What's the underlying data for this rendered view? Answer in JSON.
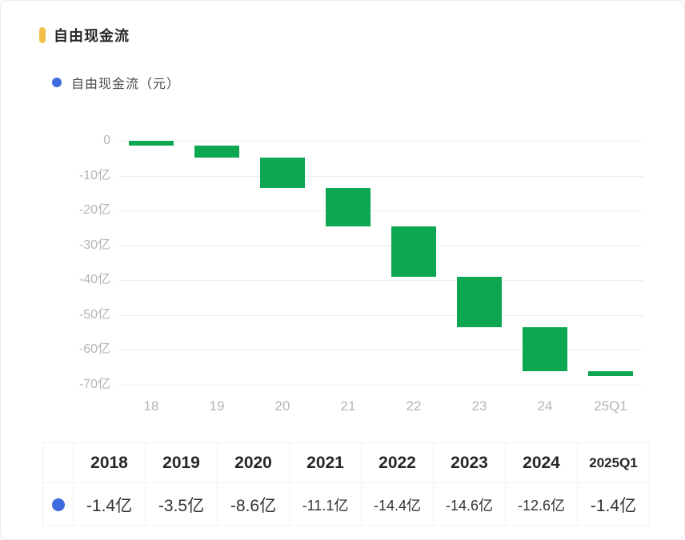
{
  "header": {
    "title": "自由现金流"
  },
  "legend": {
    "label": "自由现金流（元）"
  },
  "colors": {
    "bar_green": "#0CA750",
    "accent_gold": "#F0C04A",
    "series_blue": "#3E6BE0",
    "axis_label_gray": "#B5B5B5",
    "gridline_gray": "#EDEDED"
  },
  "chart_data": {
    "type": "bar",
    "subtype": "waterfall",
    "title": "自由现金流",
    "series_name": "自由现金流（元）",
    "categories": [
      "18",
      "19",
      "20",
      "21",
      "22",
      "23",
      "24",
      "25Q1"
    ],
    "values_yi": [
      -1.4,
      -3.5,
      -8.6,
      -11.1,
      -14.4,
      -14.6,
      -12.6,
      -1.4
    ],
    "cumulative_yi": [
      -1.4,
      -4.9,
      -13.5,
      -24.6,
      -39.0,
      -53.6,
      -66.2,
      -67.6
    ],
    "unit": "亿",
    "y_ticks": [
      {
        "label": "0",
        "value": 0
      },
      {
        "label": "-10亿",
        "value": -10
      },
      {
        "label": "-20亿",
        "value": -20
      },
      {
        "label": "-30亿",
        "value": -30
      },
      {
        "label": "-40亿",
        "value": -40
      },
      {
        "label": "-50亿",
        "value": -50
      },
      {
        "label": "-60亿",
        "value": -60
      },
      {
        "label": "-70亿",
        "value": -70
      }
    ],
    "ylim": [
      -73,
      0
    ],
    "grid": true,
    "legend_position": "top-left"
  },
  "table": {
    "years": [
      "2018",
      "2019",
      "2020",
      "2021",
      "2022",
      "2023",
      "2024",
      "2025Q1"
    ],
    "rows": [
      {
        "series": "自由现金流（元）",
        "values": [
          "-1.4亿",
          "-3.5亿",
          "-8.6亿",
          "-11.1亿",
          "-14.4亿",
          "-14.6亿",
          "-12.6亿",
          "-1.4亿"
        ]
      }
    ]
  }
}
